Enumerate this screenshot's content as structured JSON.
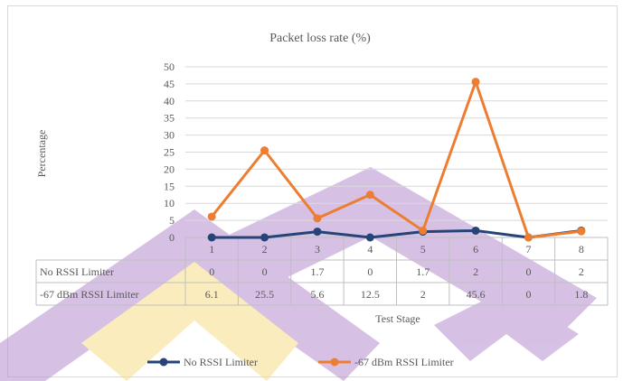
{
  "chart_data": {
    "type": "line",
    "title": "Packet loss rate (%)",
    "xlabel": "Test Stage",
    "ylabel": "Percentage",
    "ylim": [
      0,
      50
    ],
    "yticks": [
      0,
      5,
      10,
      15,
      20,
      25,
      30,
      35,
      40,
      45,
      50
    ],
    "categories": [
      "1",
      "2",
      "3",
      "4",
      "5",
      "6",
      "7",
      "8"
    ],
    "grid": true,
    "legend_position": "bottom",
    "data_table": true,
    "series": [
      {
        "name": "No RSSI Limiter",
        "values": [
          "0",
          "0",
          "1.7",
          "0",
          "1.7",
          "2",
          "0",
          "2"
        ],
        "color": "#264478"
      },
      {
        "name": "-67 dBm RSSI Limiter",
        "values": [
          "6.1",
          "25.5",
          "5.6",
          "12.5",
          "2",
          "45.6",
          "0",
          "1.8"
        ],
        "color": "#ED7D31"
      }
    ]
  }
}
